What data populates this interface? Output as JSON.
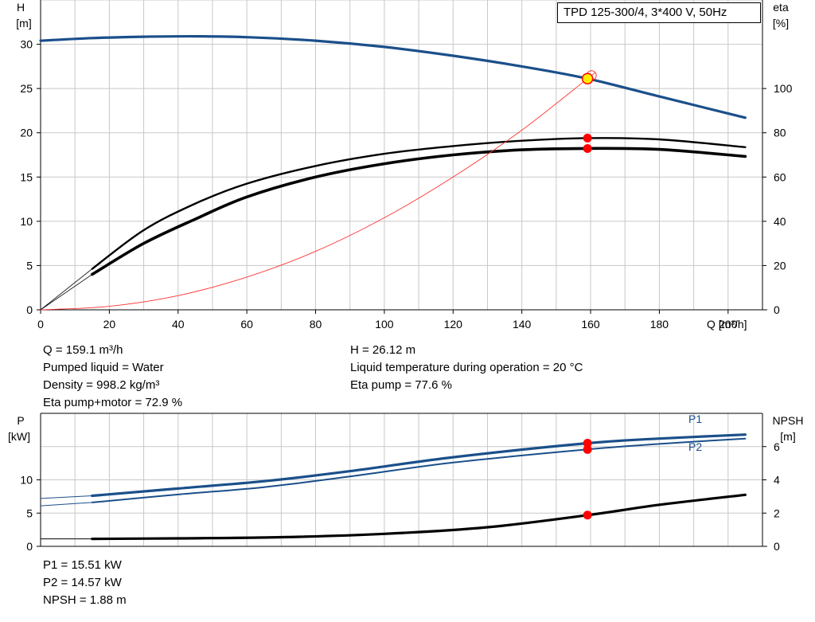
{
  "title": "TPD 125-300/4, 3*400 V, 50Hz",
  "info_top_left": [
    "Q = 159.1 m³/h",
    "Pumped liquid = Water",
    "Density = 998.2 kg/m³",
    "Eta pump+motor = 72.9 %"
  ],
  "info_top_right": [
    "H = 26.12 m",
    "Liquid temperature during operation = 20 °C",
    "Eta pump = 77.6 %"
  ],
  "info_bottom": [
    "P1 = 15.51 kW",
    "P2 = 14.57 kW",
    "NPSH = 1.88 m"
  ],
  "colors": {
    "head": "#1a4f8a",
    "power": "#1a4f8a",
    "eta": "#000000",
    "system": "#ff3333",
    "duty": "#ff0000",
    "duty_head": "#ffee00",
    "grid": "#c8c8c8"
  },
  "chart_data": [
    {
      "type": "line",
      "axes": {
        "x": {
          "label": "Q [m³/h]",
          "range": [
            0,
            210
          ],
          "ticks": [
            0,
            20,
            40,
            60,
            80,
            100,
            120,
            140,
            160,
            180,
            200
          ]
        },
        "y_left": {
          "label_line1": "H",
          "label_line2": "[m]",
          "range": [
            0,
            35
          ],
          "ticks": [
            0,
            5,
            10,
            15,
            20,
            25,
            30
          ]
        },
        "y_right": {
          "label_line1": "eta",
          "label_line2": "[%]",
          "range": [
            0,
            140
          ],
          "ticks": [
            0,
            20,
            40,
            60,
            80,
            100
          ]
        }
      },
      "grid": true,
      "series": [
        {
          "role": "head",
          "axis": "left",
          "x": [
            0,
            15,
            30,
            45,
            60,
            80,
            100,
            120,
            140,
            159.1,
            180,
            205
          ],
          "y": [
            30.4,
            30.7,
            30.85,
            30.9,
            30.8,
            30.4,
            29.7,
            28.7,
            27.5,
            26.12,
            24.1,
            21.7
          ]
        },
        {
          "role": "eta_pump",
          "axis": "right",
          "x": [
            15,
            30,
            45,
            60,
            80,
            100,
            120,
            140,
            159.1,
            180,
            205
          ],
          "y": [
            18.5,
            36,
            48,
            57,
            65,
            70.5,
            74,
            76.4,
            77.6,
            77,
            73.5
          ]
        },
        {
          "role": "eta_pump_motor",
          "axis": "right",
          "x": [
            15,
            30,
            45,
            60,
            80,
            100,
            120,
            140,
            159.1,
            180,
            205
          ],
          "y": [
            16,
            30,
            41,
            51,
            60,
            66,
            70,
            72.3,
            72.9,
            72.5,
            69.3
          ]
        },
        {
          "role": "system_curve",
          "axis": "left",
          "x": [
            0,
            20,
            40,
            60,
            80,
            100,
            120,
            140,
            159.1,
            161
          ],
          "y": [
            0,
            0.4,
            1.6,
            3.7,
            6.6,
            10.4,
            15.0,
            20.3,
            26.12,
            26.7
          ]
        }
      ],
      "duty_point": {
        "q": 159.1,
        "h": 26.12,
        "eta_pump": 77.6,
        "eta_pump_motor": 72.9
      }
    },
    {
      "type": "line",
      "axes": {
        "x": {
          "range": [
            0,
            210
          ]
        },
        "y_left": {
          "label_line1": "P",
          "label_line2": "[kW]",
          "range": [
            0,
            20
          ],
          "ticks": [
            0,
            5,
            10
          ]
        },
        "y_right": {
          "label_line1": "NPSH",
          "label_line2": "[m]",
          "range": [
            0,
            8
          ],
          "ticks": [
            0,
            2,
            4,
            6
          ]
        }
      },
      "grid": true,
      "series": [
        {
          "name": "P1",
          "axis": "left",
          "x": [
            0,
            15,
            40,
            65,
            90,
            120,
            159.1,
            180,
            205
          ],
          "y": [
            7.2,
            7.6,
            8.7,
            9.8,
            11.3,
            13.4,
            15.51,
            16.2,
            16.8
          ]
        },
        {
          "name": "P2",
          "axis": "left",
          "x": [
            0,
            15,
            40,
            65,
            90,
            120,
            159.1,
            180,
            205
          ],
          "y": [
            6.1,
            6.6,
            7.8,
            8.9,
            10.5,
            12.6,
            14.57,
            15.4,
            16.2
          ]
        },
        {
          "role": "npsh",
          "axis": "right",
          "x": [
            0,
            15,
            40,
            70,
            100,
            130,
            159.1,
            180,
            205
          ],
          "y": [
            0.45,
            0.45,
            0.48,
            0.55,
            0.75,
            1.15,
            1.88,
            2.5,
            3.1
          ]
        }
      ],
      "duty_point": {
        "q": 159.1,
        "p1": 15.51,
        "p2": 14.57,
        "npsh": 1.88
      }
    }
  ]
}
